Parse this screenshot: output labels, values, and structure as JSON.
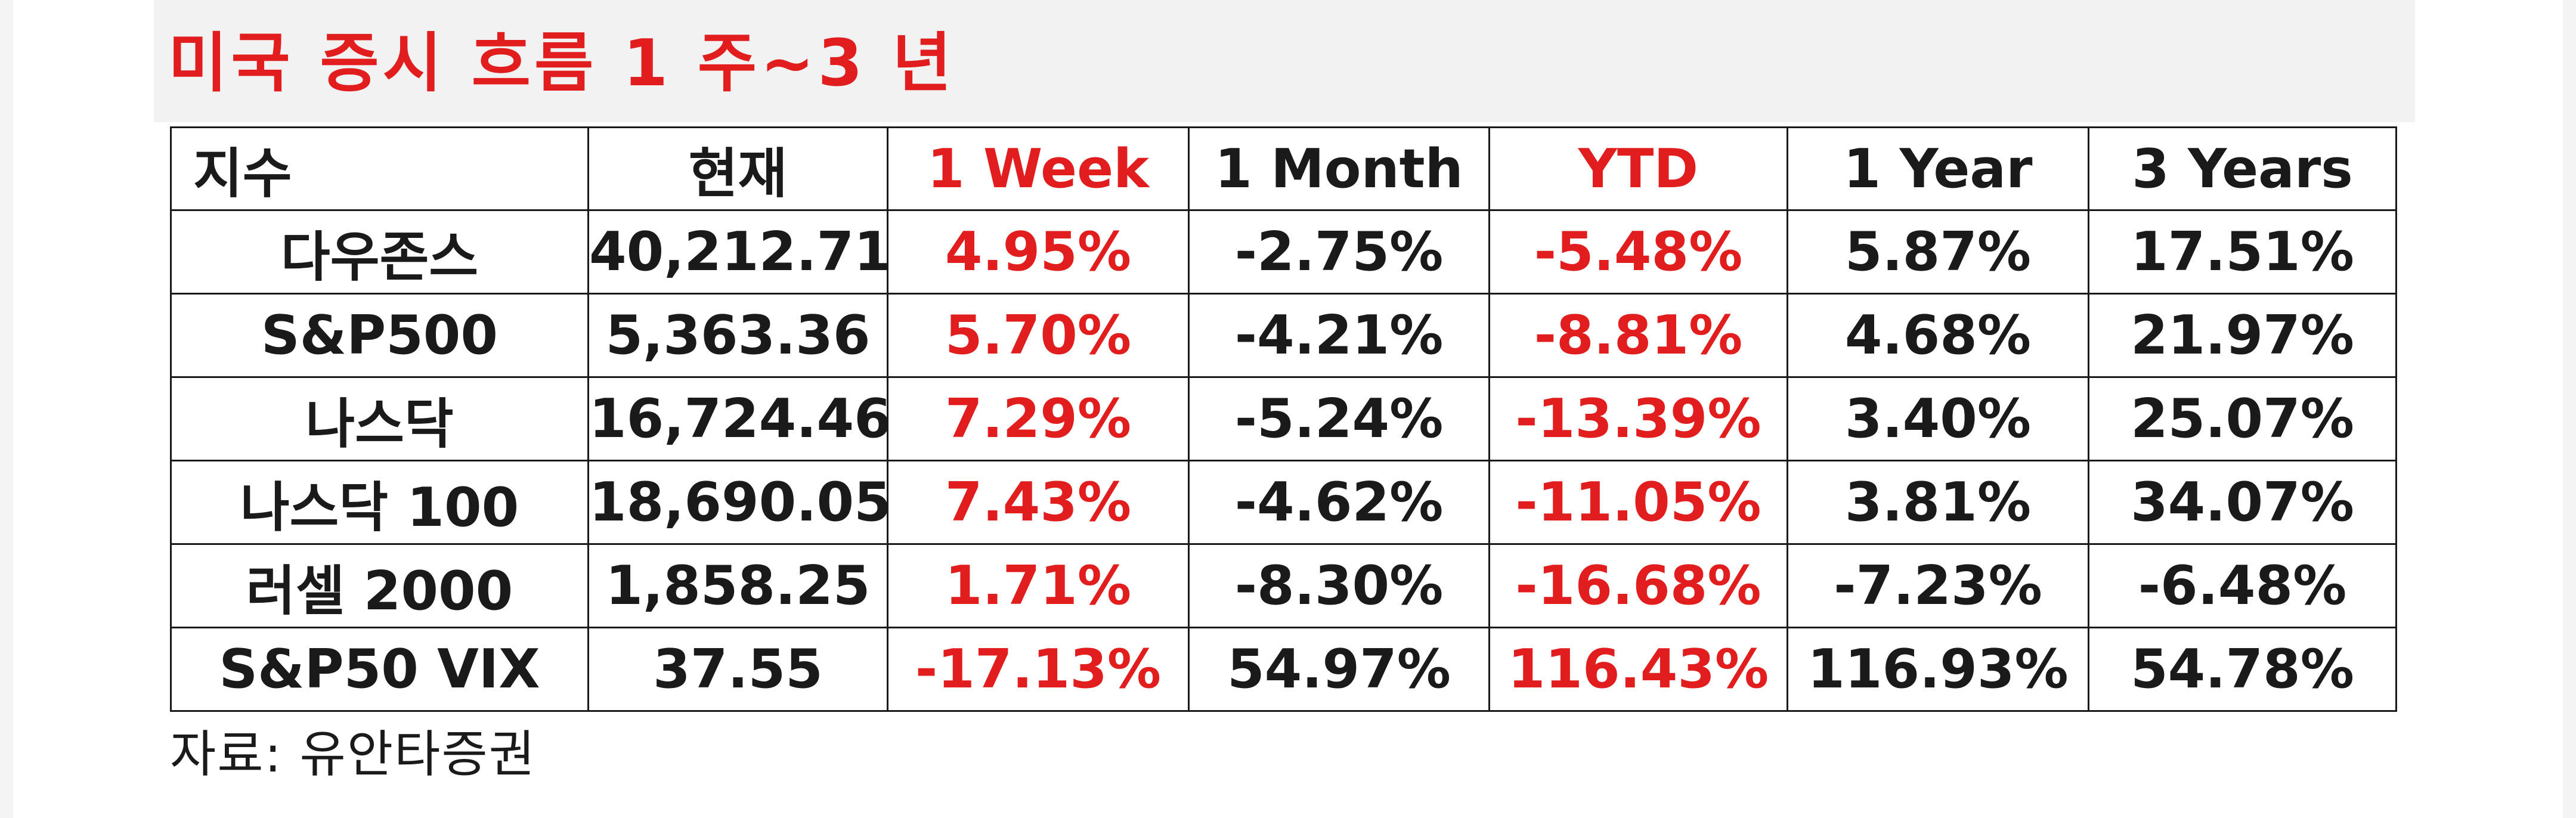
{
  "title": "미국 증시 흐름 1 주~3 년",
  "table": {
    "headers": [
      "지수",
      "현재",
      "1 Week",
      "1 Month",
      "YTD",
      "1 Year",
      "3 Years"
    ],
    "rows": [
      [
        "다우존스",
        "40,212.71",
        "4.95%",
        "-2.75%",
        "-5.48%",
        "5.87%",
        "17.51%"
      ],
      [
        "S&P500",
        "5,363.36",
        "5.70%",
        "-4.21%",
        "-8.81%",
        "4.68%",
        "21.97%"
      ],
      [
        "나스닥",
        "16,724.46",
        "7.29%",
        "-5.24%",
        "-13.39%",
        "3.40%",
        "25.07%"
      ],
      [
        "나스닥 100",
        "18,690.05",
        "7.43%",
        "-4.62%",
        "-11.05%",
        "3.81%",
        "34.07%"
      ],
      [
        "러셀 2000",
        "1,858.25",
        "1.71%",
        "-8.30%",
        "-16.68%",
        "-7.23%",
        "-6.48%"
      ],
      [
        "S&P50 VIX",
        "37.55",
        "-17.13%",
        "54.97%",
        "116.43%",
        "116.93%",
        "54.78%"
      ]
    ]
  },
  "source": "자료:  유안타증권",
  "colors": {
    "accent_red": "#e11d1d",
    "text": "#1a1a1a"
  }
}
